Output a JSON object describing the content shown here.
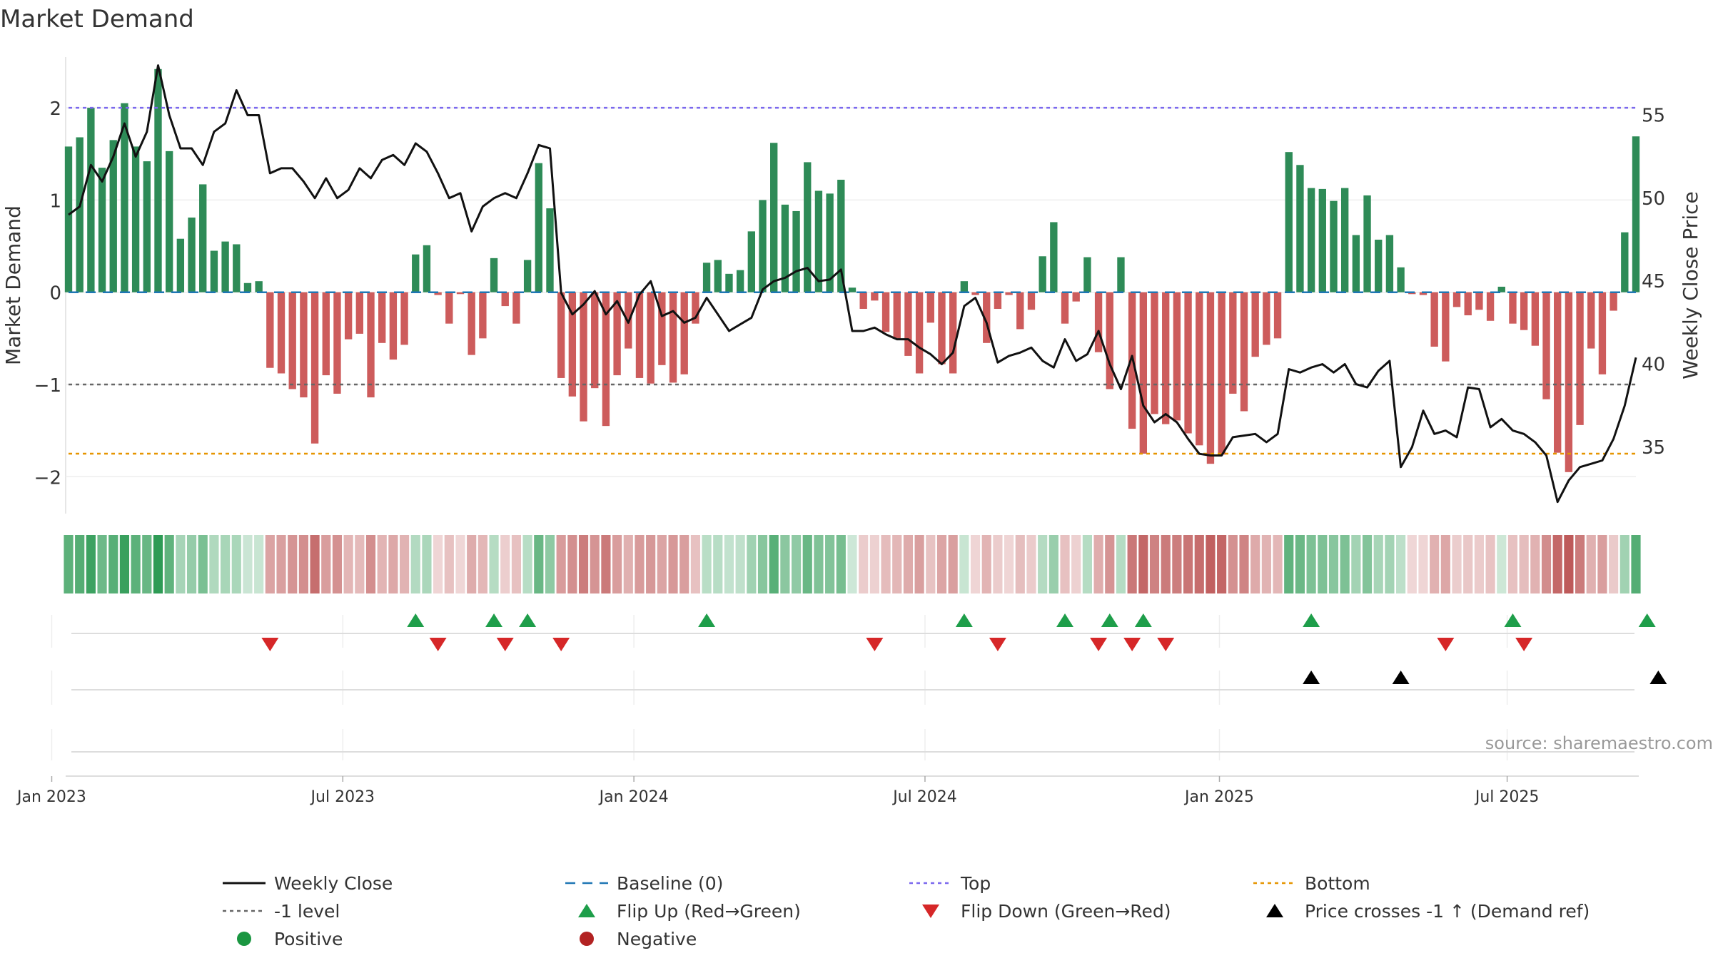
{
  "colors": {
    "positive_bar": "#2e8b57",
    "negative_bar": "#cd5c5c",
    "price_line": "#111111",
    "baseline": "#1f77b4",
    "top_line": "#7b68ee",
    "minus_one_line": "#666666",
    "bottom_line": "#e69500",
    "flip_up": "#1e9e4a",
    "flip_down": "#d62728",
    "cross": "#000000",
    "positive_dot": "#1a9641",
    "negative_dot": "#b22222",
    "strip_positive": "#2e9b55",
    "strip_negative": "#b84a4a"
  },
  "chart_data": {
    "type": "bar",
    "title": "Market Demand",
    "ylabel": "Market Demand",
    "y2label": "Weekly Close Price",
    "ylim": [
      -2.4,
      2.55
    ],
    "y2lim": [
      31.0,
      58.5
    ],
    "yticks": [
      2,
      1,
      0,
      -1,
      -2
    ],
    "ytick_labels": [
      "2",
      "1",
      "0",
      "−1",
      "−2"
    ],
    "y2ticks": [
      55,
      50,
      45,
      40,
      35
    ],
    "x_start_week_offset": 0,
    "xtick_labels": [
      "Jan 2023",
      "Jul 2023",
      "Jan 2024",
      "Jul 2024",
      "Jan 2025",
      "Jul 2025"
    ],
    "xtick_weeks": [
      -1.5,
      24.5,
      50.5,
      76.5,
      102.8,
      128.5
    ],
    "reference_lines": {
      "top": 2.0,
      "minus_one": -1.0,
      "bottom": -1.75,
      "baseline": 0
    },
    "source_note": "source: sharemaestro.com",
    "demand": [
      1.58,
      1.68,
      2.0,
      1.35,
      1.65,
      2.05,
      1.58,
      1.42,
      2.42,
      1.53,
      0.58,
      0.81,
      1.17,
      0.45,
      0.55,
      0.52,
      0.1,
      0.12,
      -0.82,
      -0.88,
      -1.05,
      -1.14,
      -1.64,
      -0.9,
      -1.1,
      -0.51,
      -0.45,
      -1.14,
      -0.55,
      -0.73,
      -0.57,
      0.41,
      0.51,
      -0.03,
      -0.34,
      -0.02,
      -0.68,
      -0.5,
      0.37,
      -0.15,
      -0.34,
      0.35,
      1.4,
      0.91,
      -0.93,
      -1.13,
      -1.4,
      -1.04,
      -1.45,
      -0.9,
      -0.61,
      -0.93,
      -0.99,
      -0.79,
      -0.98,
      -0.89,
      -0.34,
      0.32,
      0.35,
      0.2,
      0.24,
      0.66,
      1.0,
      1.62,
      0.95,
      0.88,
      1.41,
      1.1,
      1.07,
      1.22,
      0.05,
      -0.18,
      -0.09,
      -0.43,
      -0.5,
      -0.69,
      -0.88,
      -0.33,
      -0.78,
      -0.88,
      0.12,
      -0.03,
      -0.55,
      -0.18,
      -0.03,
      -0.4,
      -0.19,
      0.39,
      0.76,
      -0.34,
      -0.1,
      0.38,
      -0.65,
      -1.05,
      0.38,
      -1.48,
      -1.75,
      -1.32,
      -1.43,
      -1.39,
      -1.53,
      -1.66,
      -1.86,
      -1.76,
      -1.1,
      -1.29,
      -0.7,
      -0.57,
      -0.5,
      1.52,
      1.38,
      1.13,
      1.12,
      0.99,
      1.13,
      0.62,
      1.05,
      0.57,
      0.62,
      0.27,
      -0.02,
      -0.03,
      -0.59,
      -0.75,
      -0.16,
      -0.25,
      -0.19,
      -0.31,
      0.06,
      -0.34,
      -0.41,
      -0.58,
      -1.16,
      -1.74,
      -1.95,
      -1.44,
      -0.61,
      -0.89,
      -0.2,
      0.65,
      1.69
    ],
    "weekly_close": [
      49.0,
      49.5,
      52.0,
      51.0,
      52.5,
      54.5,
      52.5,
      54.0,
      58.0,
      55.0,
      53.0,
      53.0,
      52.0,
      54.0,
      54.5,
      56.5,
      55.0,
      55.0,
      51.5,
      51.8,
      51.8,
      51.0,
      50.0,
      51.2,
      50.0,
      50.5,
      51.8,
      51.2,
      52.3,
      52.6,
      52.0,
      53.3,
      52.8,
      51.5,
      50.0,
      50.3,
      48.0,
      49.5,
      50.0,
      50.3,
      50.0,
      51.5,
      53.2,
      53.0,
      44.3,
      43.0,
      43.6,
      44.4,
      43.0,
      43.8,
      42.5,
      44.2,
      45.0,
      42.9,
      43.2,
      42.5,
      42.8,
      44.0,
      43.0,
      42.0,
      42.4,
      42.8,
      44.5,
      45.0,
      45.2,
      45.6,
      45.8,
      45.0,
      45.1,
      45.7,
      42.0,
      42.0,
      42.2,
      41.8,
      41.5,
      41.5,
      41.0,
      40.6,
      40.0,
      40.7,
      43.5,
      44.0,
      42.5,
      40.1,
      40.5,
      40.7,
      41.0,
      40.2,
      39.8,
      41.5,
      40.2,
      40.6,
      42.0,
      40.0,
      38.5,
      40.5,
      37.5,
      36.5,
      37.0,
      36.5,
      35.5,
      34.6,
      34.5,
      34.5,
      35.6,
      35.7,
      35.8,
      35.3,
      35.8,
      39.7,
      39.5,
      39.8,
      40.0,
      39.5,
      40.0,
      38.8,
      38.6,
      39.6,
      40.2,
      33.8,
      35.0,
      37.2,
      35.8,
      36.0,
      35.6,
      38.6,
      38.5,
      36.2,
      36.7,
      36.0,
      35.8,
      35.3,
      34.5,
      31.7,
      33.0,
      33.8,
      34.0,
      34.2,
      35.5,
      37.5,
      40.4
    ],
    "flip_up_weeks": [
      31,
      38,
      41,
      57,
      80,
      89,
      93,
      96,
      111,
      129,
      141
    ],
    "flip_down_weeks": [
      18,
      33,
      39,
      44,
      72,
      83,
      92,
      95,
      98,
      123,
      130
    ],
    "price_cross_weeks": [
      111,
      119,
      142
    ],
    "legend": [
      {
        "label": "Weekly Close",
        "kind": "solid",
        "color": "#111111"
      },
      {
        "label": "Baseline (0)",
        "kind": "dashed",
        "color": "#1f77b4"
      },
      {
        "label": "Top",
        "kind": "dotted",
        "color": "#7b68ee"
      },
      {
        "label": "Bottom",
        "kind": "dotted",
        "color": "#e69500"
      },
      {
        "label": "-1 level",
        "kind": "dotted",
        "color": "#666666"
      },
      {
        "label": "Flip Up (Red→Green)",
        "kind": "tri-up",
        "color": "#1e9e4a"
      },
      {
        "label": "Flip Down (Green→Red)",
        "kind": "tri-down",
        "color": "#d62728"
      },
      {
        "label": "Price crosses -1 ↑ (Demand ref)",
        "kind": "tri-up",
        "color": "#000000"
      },
      {
        "label": "Positive",
        "kind": "dot",
        "color": "#1a9641"
      },
      {
        "label": "Negative",
        "kind": "dot",
        "color": "#b22222"
      }
    ]
  }
}
